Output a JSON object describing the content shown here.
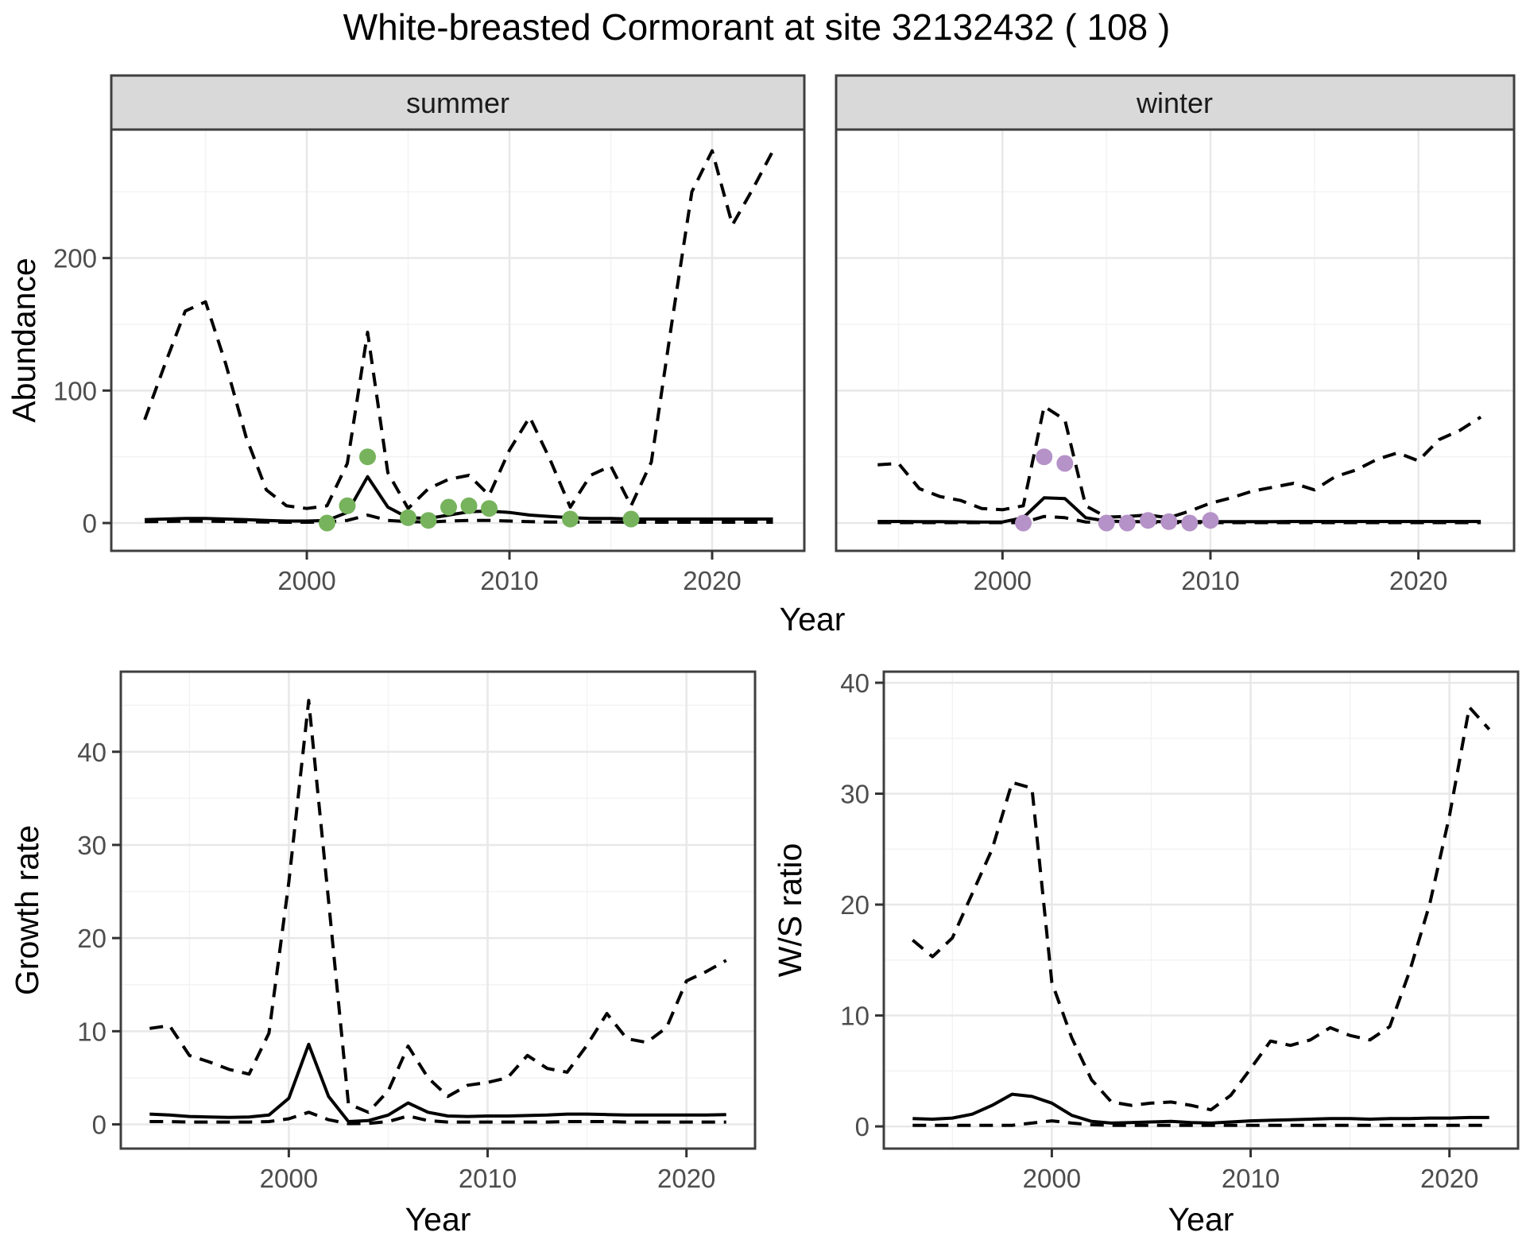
{
  "title": "White-breasted Cormorant at site 32132432 ( 108 )",
  "axis_titles": {
    "abundance": "Abundance",
    "year": "Year",
    "growth_rate": "Growth rate",
    "ws_ratio": "W/S ratio"
  },
  "colors": {
    "summer_point": "#76b35c",
    "winter_point": "#b592c7",
    "line": "#000000",
    "strip_bg": "#d9d9d9",
    "panel_border": "#3f3f3f",
    "grid_major": "#e8e8e8",
    "grid_minor": "#f3f3f3",
    "tick_text": "#4d4d4d"
  },
  "chart_data": [
    {
      "id": "abundance-summer",
      "type": "line",
      "facet_label": "summer",
      "xlabel": "Year",
      "ylabel": "Abundance",
      "xlim": [
        1990.35,
        2024.55
      ],
      "ylim": [
        -21,
        297
      ],
      "xticks": [
        2000,
        2010,
        2020
      ],
      "yticks": [
        0,
        100,
        200
      ],
      "xminor": [
        1995,
        2005,
        2015
      ],
      "yminor": [
        50,
        150,
        250
      ],
      "x": [
        1992,
        1993,
        1994,
        1995,
        1996,
        1997,
        1998,
        1999,
        2000,
        2001,
        2002,
        2003,
        2004,
        2005,
        2006,
        2007,
        2008,
        2009,
        2010,
        2011,
        2012,
        2013,
        2014,
        2015,
        2016,
        2017,
        2018,
        2019,
        2020,
        2021,
        2022,
        2023
      ],
      "series": [
        {
          "name": "upper-ci",
          "style": "dashed",
          "values": [
            78,
            120,
            160,
            167,
            120,
            65,
            25,
            13,
            11,
            13,
            45,
            144,
            38,
            11,
            26,
            33,
            36,
            21,
            55,
            80,
            48,
            12,
            36,
            43,
            13,
            46,
            150,
            250,
            281,
            225,
            252,
            281
          ]
        },
        {
          "name": "estimate",
          "style": "solid",
          "values": [
            2.5,
            3,
            3.5,
            3.5,
            3,
            2.5,
            2,
            1.5,
            1.5,
            2,
            8,
            35,
            12,
            4,
            3.5,
            6,
            8.5,
            9,
            8,
            6,
            5,
            4,
            3.5,
            3.5,
            3,
            3,
            3,
            3,
            3,
            3,
            3,
            3
          ]
        },
        {
          "name": "lower-ci",
          "style": "dashed",
          "values": [
            1,
            1.2,
            1.4,
            1.4,
            1.2,
            1,
            0.8,
            0.6,
            0.6,
            0.8,
            2,
            6,
            2,
            1,
            0.8,
            1.5,
            2,
            2,
            1.5,
            1,
            0.8,
            0.7,
            0.7,
            0.7,
            0.6,
            0.6,
            0.6,
            0.6,
            0.6,
            0.6,
            0.6,
            0.6
          ]
        }
      ],
      "points": {
        "name": "observed-counts",
        "color_key": "summer_point",
        "x": [
          2001,
          2002,
          2003,
          2005,
          2006,
          2007,
          2008,
          2009,
          2013,
          2016
        ],
        "y": [
          0,
          13,
          50,
          4,
          2,
          12,
          13,
          11,
          3,
          3
        ]
      }
    },
    {
      "id": "abundance-winter",
      "type": "line",
      "facet_label": "winter",
      "xlabel": "Year",
      "ylabel": "Abundance",
      "xlim": [
        1992.0,
        2024.6
      ],
      "ylim": [
        -21,
        297
      ],
      "xticks": [
        2000,
        2010,
        2020
      ],
      "yticks": [
        0,
        100,
        200
      ],
      "xminor": [
        1995,
        2005,
        2015
      ],
      "yminor": [
        50,
        150,
        250
      ],
      "x": [
        1994,
        1995,
        1996,
        1997,
        1998,
        1999,
        2000,
        2001,
        2002,
        2003,
        2004,
        2005,
        2006,
        2007,
        2008,
        2009,
        2010,
        2011,
        2012,
        2013,
        2014,
        2015,
        2016,
        2017,
        2018,
        2019,
        2020,
        2021,
        2022,
        2023
      ],
      "series": [
        {
          "name": "upper-ci",
          "style": "dashed",
          "values": [
            44,
            45,
            26,
            20,
            17,
            11,
            10,
            13,
            88,
            78,
            13,
            4.5,
            5,
            6,
            4,
            9,
            15,
            19,
            24,
            27,
            30,
            25,
            35,
            40,
            48,
            53,
            47,
            63,
            70,
            80
          ]
        },
        {
          "name": "estimate",
          "style": "solid",
          "values": [
            1.2,
            1.2,
            1,
            1,
            0.9,
            0.8,
            0.8,
            4,
            19,
            18.5,
            4,
            1.5,
            1,
            1,
            1,
            1,
            1.1,
            1.1,
            1.1,
            1.1,
            1.2,
            1.2,
            1.2,
            1.2,
            1.2,
            1.2,
            1.2,
            1.2,
            1.2,
            1.2
          ]
        },
        {
          "name": "lower-ci",
          "style": "dashed",
          "values": [
            0.3,
            0.3,
            0.3,
            0.3,
            0.3,
            0.3,
            0.3,
            0.3,
            5,
            4,
            0.8,
            0.3,
            0.3,
            0.3,
            0.3,
            0.3,
            0.3,
            0.3,
            0.3,
            0.3,
            0.3,
            0.3,
            0.3,
            0.3,
            0.3,
            0.3,
            0.3,
            0.3,
            0.3,
            0.3
          ]
        }
      ],
      "points": {
        "name": "observed-counts",
        "color_key": "winter_point",
        "x": [
          2001,
          2002,
          2003,
          2005,
          2006,
          2007,
          2008,
          2009,
          2010
        ],
        "y": [
          0,
          50,
          45,
          0,
          0,
          2,
          1,
          0,
          2
        ]
      }
    },
    {
      "id": "growth-rate",
      "type": "line",
      "facet_label": "",
      "xlabel": "Year",
      "ylabel": "Growth rate",
      "xlim": [
        1991.55,
        2023.45
      ],
      "ylim": [
        -2.6,
        48.6
      ],
      "xticks": [
        2000,
        2010,
        2020
      ],
      "yticks": [
        0,
        10,
        20,
        30,
        40
      ],
      "xminor": [
        1995,
        2005,
        2015
      ],
      "yminor": [
        5,
        15,
        25,
        35,
        45
      ],
      "x": [
        1993,
        1994,
        1995,
        1996,
        1997,
        1998,
        1999,
        2000,
        2001,
        2002,
        2003,
        2004,
        2005,
        2006,
        2007,
        2008,
        2009,
        2010,
        2011,
        2012,
        2013,
        2014,
        2015,
        2016,
        2017,
        2018,
        2019,
        2020,
        2021,
        2022
      ],
      "series": [
        {
          "name": "upper-ci",
          "style": "dashed",
          "values": [
            10.3,
            10.6,
            7.4,
            6.7,
            5.9,
            5.4,
            9.8,
            26,
            45.5,
            24,
            2.2,
            1.3,
            3.6,
            8.4,
            5,
            3,
            4.2,
            4.5,
            5,
            7.4,
            6,
            5.6,
            8.5,
            11.9,
            9.2,
            8.8,
            10.4,
            15.4,
            16.4,
            17.6
          ]
        },
        {
          "name": "estimate",
          "style": "solid",
          "values": [
            1.1,
            1,
            0.85,
            0.8,
            0.75,
            0.8,
            1,
            2.8,
            8.6,
            3,
            0.3,
            0.4,
            1,
            2.3,
            1.3,
            0.9,
            0.85,
            0.9,
            0.9,
            0.95,
            1,
            1.1,
            1.1,
            1.05,
            1,
            1,
            1,
            1,
            1,
            1.05
          ]
        },
        {
          "name": "lower-ci",
          "style": "dashed",
          "values": [
            0.3,
            0.3,
            0.25,
            0.25,
            0.25,
            0.25,
            0.3,
            0.6,
            1.3,
            0.5,
            0.08,
            0.1,
            0.3,
            0.9,
            0.4,
            0.25,
            0.25,
            0.25,
            0.25,
            0.25,
            0.25,
            0.3,
            0.3,
            0.3,
            0.25,
            0.25,
            0.25,
            0.25,
            0.25,
            0.25
          ]
        }
      ],
      "points": null
    },
    {
      "id": "ws-ratio",
      "type": "line",
      "facet_label": "",
      "xlabel": "Year",
      "ylabel": "W/S ratio",
      "xlim": [
        1991.55,
        2023.45
      ],
      "ylim": [
        -2.0,
        41.0
      ],
      "xticks": [
        2000,
        2010,
        2020
      ],
      "yticks": [
        0,
        10,
        20,
        30,
        40
      ],
      "xminor": [
        1995,
        2005,
        2015
      ],
      "yminor": [
        5,
        15,
        25,
        35
      ],
      "x": [
        1993,
        1994,
        1995,
        1996,
        1997,
        1998,
        1999,
        2000,
        2001,
        2002,
        2003,
        2004,
        2005,
        2006,
        2007,
        2008,
        2009,
        2010,
        2011,
        2012,
        2013,
        2014,
        2015,
        2016,
        2017,
        2018,
        2019,
        2020,
        2021,
        2022
      ],
      "series": [
        {
          "name": "upper-ci",
          "style": "dashed",
          "values": [
            16.8,
            15.3,
            17,
            21,
            25,
            31,
            30.5,
            13,
            8,
            4.2,
            2.2,
            1.9,
            2.1,
            2.2,
            1.9,
            1.5,
            2.8,
            5.2,
            7.7,
            7.3,
            7.8,
            8.9,
            8.2,
            7.8,
            9,
            14,
            20,
            28,
            37.8,
            35.8
          ]
        },
        {
          "name": "estimate",
          "style": "solid",
          "values": [
            0.7,
            0.65,
            0.75,
            1.1,
            1.9,
            2.9,
            2.7,
            2.1,
            1,
            0.45,
            0.3,
            0.35,
            0.4,
            0.45,
            0.35,
            0.3,
            0.4,
            0.5,
            0.55,
            0.6,
            0.65,
            0.7,
            0.7,
            0.65,
            0.7,
            0.7,
            0.75,
            0.75,
            0.8,
            0.8
          ]
        },
        {
          "name": "lower-ci",
          "style": "dashed",
          "values": [
            0.1,
            0.1,
            0.1,
            0.1,
            0.1,
            0.1,
            0.3,
            0.5,
            0.3,
            0.15,
            0.1,
            0.1,
            0.1,
            0.1,
            0.1,
            0.1,
            0.1,
            0.1,
            0.1,
            0.1,
            0.1,
            0.1,
            0.1,
            0.1,
            0.1,
            0.1,
            0.1,
            0.1,
            0.1,
            0.1
          ]
        }
      ],
      "points": null
    }
  ]
}
